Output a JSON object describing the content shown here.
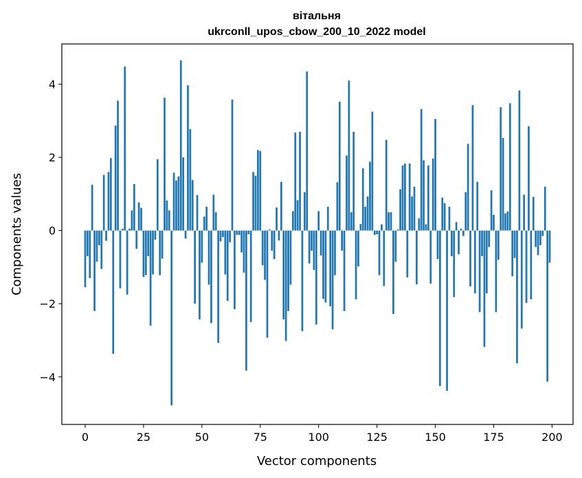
{
  "chart_data": {
    "type": "bar",
    "title": "вітальня",
    "subtitle": "ukrconll_upos_cbow_200_10_2022 model",
    "xlabel": "Vector components",
    "ylabel": "Components values",
    "xlim": [
      -10,
      209
    ],
    "ylim": [
      -5.3,
      5.1
    ],
    "xticks": [
      0,
      25,
      50,
      75,
      100,
      125,
      150,
      175,
      200
    ],
    "yticks": [
      -4,
      -2,
      0,
      2,
      4
    ],
    "ytick_labels": [
      "−4",
      "−2",
      "0",
      "2",
      "4"
    ],
    "grid": false,
    "bar_color": "#1f77b4",
    "x": [
      0,
      1,
      2,
      3,
      4,
      5,
      6,
      7,
      8,
      9,
      10,
      11,
      12,
      13,
      14,
      15,
      16,
      17,
      18,
      19,
      20,
      21,
      22,
      23,
      24,
      25,
      26,
      27,
      28,
      29,
      30,
      31,
      32,
      33,
      34,
      35,
      36,
      37,
      38,
      39,
      40,
      41,
      42,
      43,
      44,
      45,
      46,
      47,
      48,
      49,
      50,
      51,
      52,
      53,
      54,
      55,
      56,
      57,
      58,
      59,
      60,
      61,
      62,
      63,
      64,
      65,
      66,
      67,
      68,
      69,
      70,
      71,
      72,
      73,
      74,
      75,
      76,
      77,
      78,
      79,
      80,
      81,
      82,
      83,
      84,
      85,
      86,
      87,
      88,
      89,
      90,
      91,
      92,
      93,
      94,
      95,
      96,
      97,
      98,
      99,
      100,
      101,
      102,
      103,
      104,
      105,
      106,
      107,
      108,
      109,
      110,
      111,
      112,
      113,
      114,
      115,
      116,
      117,
      118,
      119,
      120,
      121,
      122,
      123,
      124,
      125,
      126,
      127,
      128,
      129,
      130,
      131,
      132,
      133,
      134,
      135,
      136,
      137,
      138,
      139,
      140,
      141,
      142,
      143,
      144,
      145,
      146,
      147,
      148,
      149,
      150,
      151,
      152,
      153,
      154,
      155,
      156,
      157,
      158,
      159,
      160,
      161,
      162,
      163,
      164,
      165,
      166,
      167,
      168,
      169,
      170,
      171,
      172,
      173,
      174,
      175,
      176,
      177,
      178,
      179,
      180,
      181,
      182,
      183,
      184,
      185,
      186,
      187,
      188,
      189,
      190,
      191,
      192,
      193,
      194,
      195,
      196,
      197,
      198,
      199
    ],
    "values": [
      -1.55,
      -0.7,
      -1.3,
      1.25,
      -2.2,
      -0.85,
      -0.4,
      -1.05,
      1.52,
      -0.28,
      1.6,
      1.98,
      -3.37,
      2.87,
      3.55,
      -1.58,
      0.05,
      4.48,
      -1.75,
      0.05,
      0.55,
      1.27,
      -0.5,
      0.77,
      0.62,
      -1.27,
      -1.22,
      -0.7,
      -2.6,
      -1.2,
      -0.25,
      1.95,
      -1.22,
      -0.77,
      3.63,
      0.82,
      0.55,
      -4.78,
      1.58,
      1.37,
      1.48,
      4.65,
      2.0,
      -0.22,
      3.97,
      2.77,
      1.38,
      -2.0,
      0.97,
      -2.43,
      -0.88,
      0.38,
      0.65,
      -1.48,
      -2.53,
      0.98,
      0.5,
      -3.07,
      -0.3,
      -0.18,
      -1.2,
      -1.92,
      -0.32,
      3.58,
      -2.15,
      -0.12,
      -0.12,
      -0.6,
      -1.15,
      -3.83,
      -0.1,
      -2.5,
      1.6,
      1.5,
      2.2,
      2.17,
      -0.95,
      -1.35,
      -2.93,
      0.03,
      -0.55,
      -0.78,
      0.63,
      -0.27,
      1.33,
      -2.43,
      -3.02,
      -2.2,
      -1.48,
      0.53,
      2.68,
      0.83,
      2.7,
      -2.75,
      1.05,
      4.35,
      -0.9,
      -0.55,
      -1.08,
      -2.57,
      0.53,
      -0.68,
      -1.87,
      -1.97,
      0.65,
      -2.07,
      -2.7,
      -1.22,
      1.32,
      3.52,
      -0.55,
      -2.2,
      2.05,
      4.1,
      0.5,
      2.7,
      -1.88,
      -0.98,
      0.18,
      1.7,
      0.65,
      0.93,
      1.88,
      3.25,
      -0.12,
      -0.1,
      -1.22,
      0.17,
      -1.52,
      2.48,
      0.5,
      0.5,
      -2.28,
      -0.85,
      0.03,
      1.13,
      1.78,
      1.83,
      -1.28,
      1.83,
      0.93,
      1.2,
      -1.47,
      0.33,
      3.32,
      1.92,
      0.17,
      1.78,
      -1.45,
      1.97,
      3.05,
      -0.78,
      -4.25,
      0.9,
      0.75,
      -4.38,
      0.65,
      -0.7,
      -1.82,
      0.23,
      -0.65,
      0.05,
      -0.15,
      1.05,
      2.37,
      -1.53,
      3.43,
      -1.72,
      1.33,
      -2.23,
      -0.7,
      -3.18,
      -1.72,
      -0.45,
      1.1,
      0.43,
      -2.23,
      -0.8,
      3.37,
      2.53,
      0.47,
      0.52,
      3.48,
      -1.25,
      -0.75,
      -3.63,
      3.83,
      -2.68,
      0.98,
      -1.98,
      2.85,
      -1.88,
      0.92,
      -0.45,
      -0.67,
      -0.4,
      -0.15,
      1.2,
      -4.13,
      -0.88
    ]
  }
}
